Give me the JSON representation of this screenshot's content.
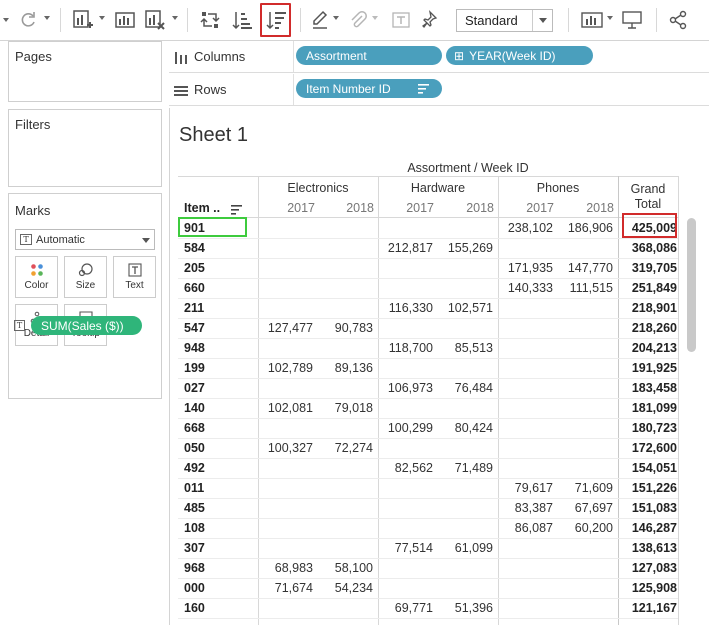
{
  "toolbar": {
    "icons": [
      "redo-icon",
      "new-datasource-icon",
      "new-worksheet-icon",
      "clear-sheet-icon",
      "swap-rows-columns-icon",
      "sort-ascending-icon",
      "sort-descending-icon",
      "highlight-pen-icon",
      "attach-icon",
      "text-label-icon",
      "pin-icon",
      "show-me-icon",
      "presentation-icon",
      "share-icon"
    ],
    "fit_value": "Standard",
    "highlighted_button": "sort-descending"
  },
  "panels": {
    "pages_title": "Pages",
    "filters_title": "Filters",
    "marks_title": "Marks",
    "mark_type": "Automatic",
    "mark_buttons": [
      {
        "label": "Color",
        "icon": "color-dots-icon"
      },
      {
        "label": "Size",
        "icon": "size-icon"
      },
      {
        "label": "Text",
        "icon": "text-icon"
      },
      {
        "label": "Detail",
        "icon": "detail-dots-icon"
      },
      {
        "label": "Tooltip",
        "icon": "tooltip-icon"
      }
    ],
    "mark_field": "SUM(Sales ($))",
    "mark_field_type_icon": "T"
  },
  "shelves": {
    "columns_label": "Columns",
    "rows_label": "Rows",
    "columns_pills": [
      "Assortment",
      "YEAR(Week ID)"
    ],
    "rows_pills": [
      "Item Number ID"
    ],
    "year_pill_prefix": "⊞"
  },
  "sheet": {
    "title": "Sheet 1",
    "column_header_title": "Assortment  /  Week ID",
    "row_header_label": "Item ..",
    "categories": [
      "Electronics",
      "Hardware",
      "Phones"
    ],
    "years": [
      "2017",
      "2018"
    ],
    "grand_total_label": [
      "Grand",
      "Total"
    ],
    "rows": [
      {
        "id": "901",
        "e17": "",
        "e18": "",
        "h17": "",
        "h18": "",
        "p17": "238,102",
        "p18": "186,906",
        "total": "425,009"
      },
      {
        "id": "584",
        "e17": "",
        "e18": "",
        "h17": "212,817",
        "h18": "155,269",
        "p17": "",
        "p18": "",
        "total": "368,086"
      },
      {
        "id": "205",
        "e17": "",
        "e18": "",
        "h17": "",
        "h18": "",
        "p17": "171,935",
        "p18": "147,770",
        "total": "319,705"
      },
      {
        "id": "660",
        "e17": "",
        "e18": "",
        "h17": "",
        "h18": "",
        "p17": "140,333",
        "p18": "111,515",
        "total": "251,849"
      },
      {
        "id": "211",
        "e17": "",
        "e18": "",
        "h17": "116,330",
        "h18": "102,571",
        "p17": "",
        "p18": "",
        "total": "218,901"
      },
      {
        "id": "547",
        "e17": "127,477",
        "e18": "90,783",
        "h17": "",
        "h18": "",
        "p17": "",
        "p18": "",
        "total": "218,260"
      },
      {
        "id": "948",
        "e17": "",
        "e18": "",
        "h17": "118,700",
        "h18": "85,513",
        "p17": "",
        "p18": "",
        "total": "204,213"
      },
      {
        "id": "199",
        "e17": "102,789",
        "e18": "89,136",
        "h17": "",
        "h18": "",
        "p17": "",
        "p18": "",
        "total": "191,925"
      },
      {
        "id": "027",
        "e17": "",
        "e18": "",
        "h17": "106,973",
        "h18": "76,484",
        "p17": "",
        "p18": "",
        "total": "183,458"
      },
      {
        "id": "140",
        "e17": "102,081",
        "e18": "79,018",
        "h17": "",
        "h18": "",
        "p17": "",
        "p18": "",
        "total": "181,099"
      },
      {
        "id": "668",
        "e17": "",
        "e18": "",
        "h17": "100,299",
        "h18": "80,424",
        "p17": "",
        "p18": "",
        "total": "180,723"
      },
      {
        "id": "050",
        "e17": "100,327",
        "e18": "72,274",
        "h17": "",
        "h18": "",
        "p17": "",
        "p18": "",
        "total": "172,600"
      },
      {
        "id": "492",
        "e17": "",
        "e18": "",
        "h17": "82,562",
        "h18": "71,489",
        "p17": "",
        "p18": "",
        "total": "154,051"
      },
      {
        "id": "011",
        "e17": "",
        "e18": "",
        "h17": "",
        "h18": "",
        "p17": "79,617",
        "p18": "71,609",
        "total": "151,226"
      },
      {
        "id": "485",
        "e17": "",
        "e18": "",
        "h17": "",
        "h18": "",
        "p17": "83,387",
        "p18": "67,697",
        "total": "151,083"
      },
      {
        "id": "108",
        "e17": "",
        "e18": "",
        "h17": "",
        "h18": "",
        "p17": "86,087",
        "p18": "60,200",
        "total": "146,287"
      },
      {
        "id": "307",
        "e17": "",
        "e18": "",
        "h17": "77,514",
        "h18": "61,099",
        "p17": "",
        "p18": "",
        "total": "138,613"
      },
      {
        "id": "968",
        "e17": "68,983",
        "e18": "58,100",
        "h17": "",
        "h18": "",
        "p17": "",
        "p18": "",
        "total": "127,083"
      },
      {
        "id": "000",
        "e17": "71,674",
        "e18": "54,234",
        "h17": "",
        "h18": "",
        "p17": "",
        "p18": "",
        "total": "125,908"
      },
      {
        "id": "160",
        "e17": "",
        "e18": "",
        "h17": "69,771",
        "h18": "51,396",
        "p17": "",
        "p18": "",
        "total": "121,167"
      }
    ]
  },
  "colors": {
    "pill_dimension": "#4a9fbd",
    "pill_measure": "#2fb57a",
    "highlight_red": "#d12b2b",
    "highlight_green": "#3ecb3e"
  }
}
